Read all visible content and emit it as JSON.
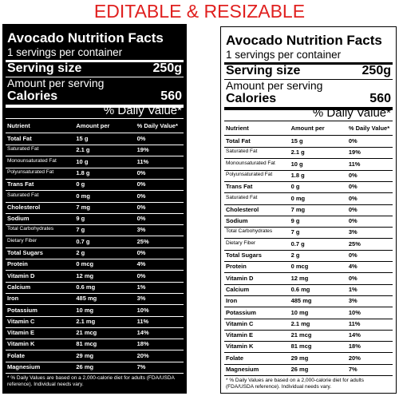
{
  "banner": "EDITABLE & RESIZABLE",
  "label": {
    "title": "Avocado Nutrition Facts",
    "servings": "1 servings per container",
    "serving_size_label": "Serving size",
    "serving_size": "250g",
    "amount_per_serving": "Amount per serving",
    "calories_label": "Calories",
    "calories": "560",
    "daily_value_heading": "% Daily Value*",
    "columns": [
      "Nutrient",
      "Amount per",
      "% Daily Value*"
    ],
    "rows": [
      {
        "name": "Total Fat",
        "amount": "15 g",
        "dv": "0%",
        "bold": true
      },
      {
        "name": "Saturated Fat",
        "amount": "2.1 g",
        "dv": "19%",
        "bold": false
      },
      {
        "name": "Monounsaturated Fat",
        "amount": "10 g",
        "dv": "11%",
        "bold": false
      },
      {
        "name": "Polyunsaturated Fat",
        "amount": "1.8 g",
        "dv": "0%",
        "bold": false
      },
      {
        "name": "Trans Fat",
        "amount": "0 g",
        "dv": "0%",
        "bold": true
      },
      {
        "name": "Saturated Fat",
        "amount": "0 mg",
        "dv": "0%",
        "bold": false
      },
      {
        "name": "Cholesterol",
        "amount": "7 mg",
        "dv": "0%",
        "bold": true
      },
      {
        "name": "Sodium",
        "amount": "9 g",
        "dv": "0%",
        "bold": true
      },
      {
        "name": "Total Carbohydrates",
        "amount": "7 g",
        "dv": "3%",
        "bold": false
      },
      {
        "name": "Dietary Fiber",
        "amount": "0.7 g",
        "dv": "25%",
        "bold": false
      },
      {
        "name": "Total Sugars",
        "amount": "2 g",
        "dv": "0%",
        "bold": true
      },
      {
        "name": "Protein",
        "amount": "0 mcg",
        "dv": "4%",
        "bold": true
      },
      {
        "name": "Vitamin D",
        "amount": "12 mg",
        "dv": "0%",
        "bold": true
      },
      {
        "name": "Calcium",
        "amount": "0.6 mg",
        "dv": "1%",
        "bold": true
      },
      {
        "name": "Iron",
        "amount": "485 mg",
        "dv": "3%",
        "bold": true
      },
      {
        "name": "Potassium",
        "amount": "10 mg",
        "dv": "10%",
        "bold": true
      },
      {
        "name": "Vitamin C",
        "amount": "2.1 mg",
        "dv": "11%",
        "bold": true
      },
      {
        "name": "Vitamin E",
        "amount": "21 mcg",
        "dv": "14%",
        "bold": true
      },
      {
        "name": "Vitamin K",
        "amount": "81 mcg",
        "dv": "18%",
        "bold": true
      },
      {
        "name": "Folate",
        "amount": "29 mg",
        "dv": "20%",
        "bold": true
      },
      {
        "name": "Magnesium",
        "amount": "26 mg",
        "dv": "7%",
        "bold": true
      }
    ],
    "footnote": "* % Daily Values are based on a 2,000-calorie diet for adults (FDA/USDA reference). Individual needs vary."
  }
}
